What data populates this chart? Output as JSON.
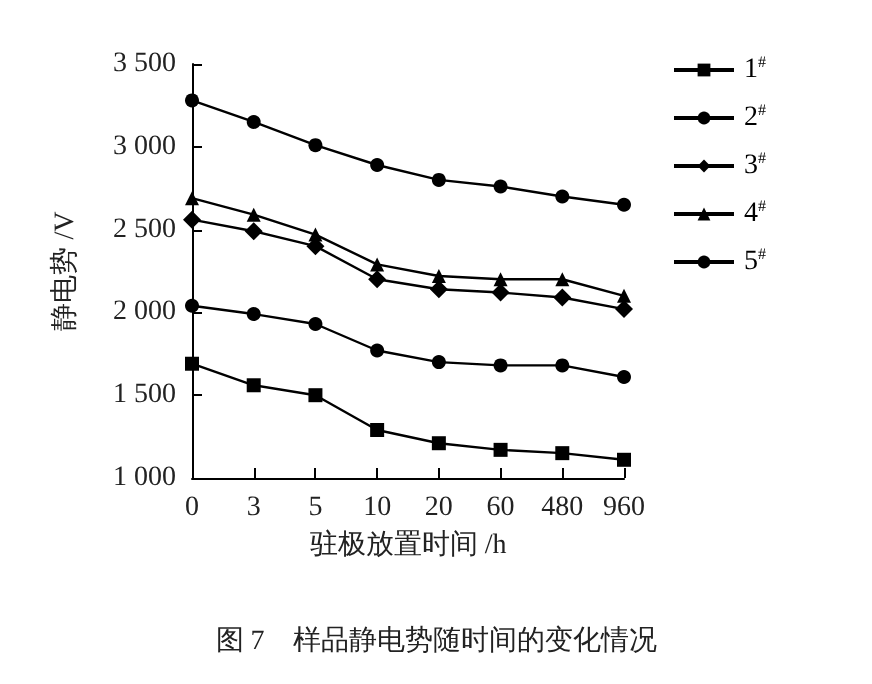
{
  "chart_data": {
    "type": "line",
    "xlabel": "驻极放置时间 /h",
    "ylabel": "静电势 /V",
    "categories": [
      "0",
      "3",
      "5",
      "10",
      "20",
      "60",
      "480",
      "960"
    ],
    "series": [
      {
        "name": "1$^{#}$",
        "color": "#000000",
        "marker": "square",
        "values": [
          1690,
          1560,
          1500,
          1290,
          1210,
          1170,
          1150,
          1110
        ]
      },
      {
        "name": "2$^{#}$",
        "color": "#000000",
        "marker": "circle",
        "values": [
          2040,
          1990,
          1930,
          1770,
          1700,
          1680,
          1680,
          1610
        ]
      },
      {
        "name": "3$^{#}$",
        "color": "#000000",
        "marker": "diamond",
        "values": [
          2560,
          2490,
          2400,
          2200,
          2140,
          2120,
          2090,
          2020
        ]
      },
      {
        "name": "4$^{#}$",
        "color": "#000000",
        "marker": "triangle",
        "values": [
          2690,
          2590,
          2470,
          2290,
          2220,
          2200,
          2200,
          2100
        ]
      },
      {
        "name": "5$^{#}$",
        "color": "#000000",
        "marker": "circle",
        "values": [
          3280,
          3150,
          3010,
          2890,
          2800,
          2760,
          2700,
          2650
        ]
      }
    ],
    "ylim": [
      1000,
      3500
    ],
    "yticks": [
      {
        "value": 1000,
        "label": "1 000"
      },
      {
        "value": 1500,
        "label": "1 500"
      },
      {
        "value": 2000,
        "label": "2 000"
      },
      {
        "value": 2500,
        "label": "2 500"
      },
      {
        "value": 3000,
        "label": "3 000"
      },
      {
        "value": 3500,
        "label": "3 500"
      }
    ],
    "grid": false,
    "legend": "top right",
    "line_style": "solid",
    "annotations": [
      "图 7　样品静电势随时间的变化情况"
    ]
  }
}
